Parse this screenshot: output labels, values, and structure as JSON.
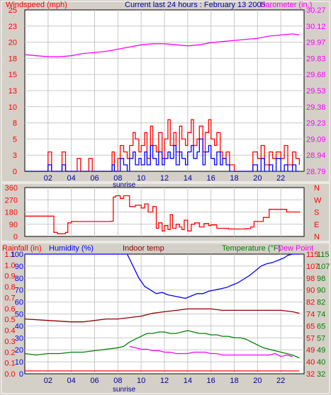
{
  "chart_data": [
    {
      "type": "line",
      "title": "Current last 24 hours : February 13 2005",
      "left_axis_label": "Windspeed (mph)",
      "right_axis_label": "Barometer (in.)",
      "x_ticks": [
        "02",
        "04",
        "06",
        "08",
        "10",
        "12",
        "14",
        "16",
        "18",
        "20",
        "22"
      ],
      "x_extra_label": "sunrise",
      "y_left_ticks": [
        0,
        3,
        5,
        8,
        10,
        13,
        15,
        18,
        20,
        23,
        25
      ],
      "y_right_ticks": [
        "28.79",
        "28.94",
        "29.09",
        "29.23",
        "29.38",
        "29.53",
        "29.68",
        "29.83",
        "29.97",
        "30.12",
        "30.27"
      ],
      "ylim_left": [
        0,
        25
      ],
      "ylim_right": [
        28.79,
        30.27
      ],
      "series": [
        {
          "name": "Barometer (in.)",
          "color": "#ff00ff",
          "axis": "right",
          "x": [
            0.0,
            1,
            2,
            3,
            4,
            5,
            6,
            7,
            8,
            9,
            10,
            11,
            12,
            13,
            14,
            15,
            16,
            17,
            18,
            19,
            20,
            21,
            22,
            23,
            23.6
          ],
          "values": [
            29.86,
            29.85,
            29.84,
            29.84,
            29.85,
            29.87,
            29.88,
            29.89,
            29.91,
            29.93,
            29.95,
            29.96,
            29.96,
            29.95,
            29.94,
            29.95,
            29.97,
            29.98,
            29.99,
            30.0,
            30.01,
            30.03,
            30.04,
            30.05,
            30.04
          ]
        },
        {
          "name": "Wind gust",
          "color": "#ff0000",
          "axis": "left",
          "x": [
            0,
            2,
            2.3,
            3.2,
            3.5,
            4.5,
            4.8,
            5.5,
            5.8,
            7.5,
            7.7,
            8,
            8.2,
            8.5,
            8.8,
            9,
            9.3,
            9.5,
            9.8,
            10,
            10.3,
            10.5,
            10.8,
            11,
            11.3,
            11.5,
            11.8,
            12,
            12.3,
            12.5,
            12.8,
            13,
            13.3,
            13.5,
            13.8,
            14,
            14.3,
            14.5,
            14.8,
            15,
            15.3,
            15.5,
            15.8,
            16,
            16.3,
            16.5,
            16.8,
            17,
            17.3,
            17.6,
            18,
            19.6,
            20,
            20.3,
            20.6,
            21,
            21.3,
            21.6,
            22,
            22.3,
            22.6,
            23,
            23.3,
            23.6
          ],
          "values": [
            0,
            3,
            0,
            3,
            0,
            2,
            0,
            2,
            0,
            3,
            0,
            2,
            4,
            3,
            2,
            4,
            6,
            5,
            3,
            4,
            6,
            2,
            7,
            4,
            3,
            6,
            2,
            5,
            8,
            4,
            6,
            3,
            7,
            5,
            4,
            6,
            8,
            4,
            5,
            7,
            3,
            6,
            8,
            5,
            4,
            6,
            3,
            2,
            3,
            1,
            0,
            3,
            2,
            4,
            1,
            3,
            2,
            3,
            2,
            4,
            1,
            3,
            2,
            1
          ]
        },
        {
          "name": "Wind speed",
          "color": "#0000ff",
          "axis": "left",
          "x": [
            0,
            2,
            2.3,
            3.2,
            3.5,
            7.5,
            7.7,
            8.2,
            8.5,
            8.8,
            9,
            9.3,
            9.5,
            9.8,
            10,
            10.3,
            10.5,
            10.8,
            11,
            11.3,
            11.5,
            11.8,
            12,
            12.3,
            12.5,
            12.8,
            13,
            13.3,
            13.5,
            13.8,
            14,
            14.3,
            14.5,
            14.8,
            15,
            15.3,
            15.5,
            15.8,
            16,
            16.3,
            16.5,
            16.8,
            17,
            17.3,
            17.6,
            18,
            19.6,
            20,
            20.3,
            20.6,
            21,
            21.3,
            21.6,
            22,
            22.3,
            22.6,
            23,
            23.3,
            23.6
          ],
          "values": [
            0,
            1,
            0,
            1,
            0,
            1,
            0,
            2,
            1,
            0,
            2,
            3,
            1,
            2,
            1,
            3,
            1,
            4,
            2,
            1,
            3,
            1,
            2,
            3,
            2,
            4,
            1,
            3,
            2,
            1,
            3,
            4,
            2,
            3,
            5,
            1,
            3,
            4,
            2,
            1,
            3,
            1,
            2,
            1,
            0,
            0,
            1,
            0,
            2,
            0,
            1,
            0,
            2,
            0,
            1,
            0,
            1,
            0,
            0
          ]
        }
      ]
    },
    {
      "type": "line",
      "left_axis_label": "",
      "y_left_ticks": [
        0,
        90,
        180,
        270,
        360
      ],
      "y_right_ticks": [
        "N",
        "E",
        "S",
        "W",
        "N"
      ],
      "ylim_left": [
        0,
        360
      ],
      "series": [
        {
          "name": "Wind direction",
          "color": "#ff0000",
          "axis": "left",
          "x": [
            0,
            2.2,
            2.5,
            2.8,
            3.5,
            3.7,
            4.0,
            7.0,
            7.4,
            7.6,
            7.8,
            8.2,
            8.5,
            9.0,
            9.5,
            10.0,
            10.3,
            10.6,
            11.0,
            11.3,
            11.5,
            11.8,
            12.0,
            12.3,
            12.5,
            12.7,
            13.0,
            13.3,
            13.5,
            13.7,
            14.0,
            14.3,
            14.6,
            15.0,
            15.4,
            15.8,
            16.0,
            16.5,
            17.0,
            17.5,
            18.0,
            19.0,
            19.4,
            19.7,
            20.0,
            20.5,
            21.0,
            21.5,
            22.0,
            22.5,
            23.0,
            23.6
          ],
          "values": [
            150,
            150,
            30,
            20,
            30,
            100,
            110,
            110,
            112,
            290,
            300,
            280,
            300,
            220,
            230,
            210,
            240,
            180,
            220,
            60,
            100,
            40,
            80,
            50,
            160,
            60,
            90,
            70,
            50,
            120,
            40,
            90,
            100,
            70,
            95,
            80,
            85,
            60,
            60,
            55,
            55,
            58,
            70,
            110,
            110,
            140,
            200,
            200,
            200,
            180,
            180,
            175
          ]
        }
      ]
    },
    {
      "type": "line",
      "labels": {
        "rainfall": "Rainfall (in)",
        "humidity": "Humidity (%)",
        "indoor": "Indoor temp",
        "temperature": "Temperature (°F)",
        "dew_point": "Dew Point"
      },
      "x_ticks": [
        "02",
        "04",
        "06",
        "08",
        "10",
        "12",
        "14",
        "16",
        "18",
        "20",
        "22"
      ],
      "x_extra_label": "sunrise",
      "rain_ticks": [
        "0.0",
        "0.1",
        "0.2",
        "0.3",
        "0.4",
        "0.5",
        "0.6",
        "0.7",
        "0.8",
        "0.9",
        "1.0",
        "1.1"
      ],
      "humidity_ticks": [
        "0",
        "10",
        "20",
        "30",
        "40",
        "50",
        "60",
        "70",
        "80",
        "90",
        "100"
      ],
      "temp_ticks_a": [
        "32",
        "40",
        "49",
        "57",
        "65",
        "74",
        "82",
        "90",
        "98",
        "107",
        "115"
      ],
      "temp_ticks_b": [
        "32",
        "40",
        "49",
        "57",
        "65",
        "74",
        "82",
        "90",
        "98",
        "107",
        "115"
      ],
      "temp_ticks_c": [
        "32",
        "40",
        "49",
        "57",
        "65",
        "74",
        "82",
        "90",
        "98",
        "107",
        "115"
      ],
      "humidity_lim": [
        0,
        100
      ],
      "temp_lim": [
        32,
        115
      ],
      "series": [
        {
          "name": "Humidity (%)",
          "color": "#0000ff",
          "axis": "humidity",
          "x": [
            0,
            8.8,
            9.3,
            9.8,
            10.3,
            10.8,
            11.3,
            11.8,
            12.3,
            12.8,
            13.3,
            13.8,
            14.3,
            14.8,
            15.3,
            15.8,
            16.3,
            16.8,
            17.3,
            17.8,
            18.3,
            18.8,
            19.3,
            19.8,
            20.3,
            20.8,
            21.3,
            21.8,
            22.3,
            22.6,
            23.0,
            23.6
          ],
          "values": [
            100,
            100,
            90,
            80,
            73,
            70,
            67,
            68,
            66,
            65,
            64,
            63,
            65,
            67,
            67,
            69,
            70,
            71,
            72,
            74,
            76,
            79,
            82,
            86,
            90,
            92,
            93,
            95,
            97,
            99,
            100,
            100
          ]
        },
        {
          "name": "Indoor temp",
          "color": "#8b0000",
          "axis": "temp",
          "x": [
            0,
            2,
            4,
            5,
            6,
            7,
            8,
            9,
            10,
            11,
            12,
            13,
            14,
            15,
            16,
            17,
            18,
            19,
            20,
            21,
            22,
            23,
            23.6
          ],
          "values": [
            70,
            69,
            68,
            68,
            69,
            70,
            70,
            71,
            72,
            74,
            75,
            76,
            77,
            77,
            77,
            76,
            76,
            76,
            76,
            76,
            76,
            75,
            74
          ]
        },
        {
          "name": "Temperature (°F)",
          "color": "#008000",
          "axis": "temp",
          "x": [
            0,
            1,
            2,
            3,
            4,
            5,
            6,
            7,
            8,
            8.5,
            9,
            9.5,
            10,
            10.5,
            11,
            11.5,
            12,
            12.5,
            13,
            13.5,
            14,
            14.5,
            15,
            15.5,
            16,
            16.5,
            17,
            17.5,
            18,
            18.5,
            19,
            19.5,
            20,
            20.5,
            21,
            21.5,
            22,
            22.5,
            23,
            23.6
          ],
          "values": [
            46,
            45,
            46,
            46,
            47,
            47,
            48,
            49,
            50,
            51,
            54,
            56,
            58,
            60,
            60,
            61,
            61,
            60,
            60,
            61,
            62,
            61,
            60,
            60,
            59,
            59,
            58,
            58,
            57,
            57,
            56,
            54,
            52,
            50,
            49,
            48,
            47,
            46,
            45,
            43
          ]
        },
        {
          "name": "Dew Point",
          "color": "#ff00ff",
          "axis": "temp",
          "x": [
            9,
            9.5,
            10,
            10.5,
            11,
            11.5,
            12,
            12.5,
            13,
            13.5,
            14,
            14.5,
            15,
            15.5,
            16,
            16.5,
            17,
            17.5,
            18,
            18.5,
            19,
            19.5,
            20,
            20.5,
            21,
            21.5,
            22,
            22.5,
            23
          ],
          "values": [
            51,
            50,
            49,
            49,
            48,
            48,
            47,
            47,
            46,
            46,
            46,
            47,
            47,
            47,
            46,
            46,
            45,
            45,
            45,
            45,
            45,
            45,
            45,
            45,
            45,
            46,
            44,
            45,
            44
          ]
        },
        {
          "name": "Rainfall (in)",
          "color": "#ff0000",
          "axis": "rain",
          "x": [
            0,
            23.6
          ],
          "values": [
            0,
            0
          ]
        }
      ]
    }
  ]
}
